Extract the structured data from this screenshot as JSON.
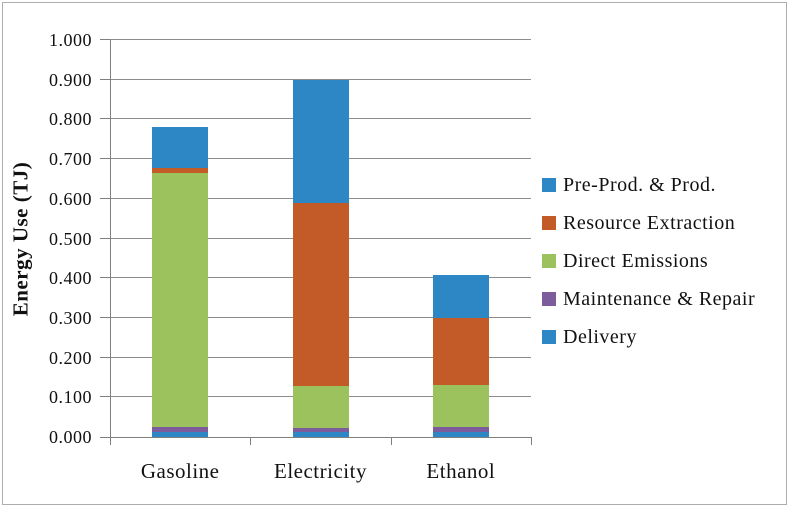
{
  "figure": {
    "background": "#ffffff",
    "border_color": "#adadad"
  },
  "axis": {
    "line_color": "#7f7f7f",
    "gridline_color": "#8c8c8c",
    "text_color": "#111111"
  },
  "chart_data": {
    "type": "bar",
    "stacked": true,
    "title": "",
    "xlabel": "",
    "ylabel": "Energy Use (TJ)",
    "categories": [
      "Gasoline",
      "Electricity",
      "Ethanol"
    ],
    "series": [
      {
        "name": "Delivery",
        "color": "#2e87c5",
        "values": [
          0.013,
          0.012,
          0.013
        ]
      },
      {
        "name": "Maintenance & Repair",
        "color": "#7d5c9b",
        "values": [
          0.012,
          0.01,
          0.012
        ]
      },
      {
        "name": "Direct Emissions",
        "color": "#9cc25e",
        "values": [
          0.64,
          0.106,
          0.105
        ]
      },
      {
        "name": "Resource Extraction",
        "color": "#c35b28",
        "values": [
          0.012,
          0.462,
          0.17
        ]
      },
      {
        "name": "Pre-Prod. & Prod.",
        "color": "#2e87c5",
        "values": [
          0.105,
          0.31,
          0.108
        ]
      }
    ],
    "totals": [
      0.782,
      0.9,
      0.408
    ],
    "ylim": [
      0.0,
      1.0
    ],
    "ytick_step": 0.1,
    "ytick_decimals": 3,
    "grid": true,
    "legend_position": "right",
    "legend_order_top_to_bottom": [
      "Pre-Prod. & Prod.",
      "Resource Extraction",
      "Direct Emissions",
      "Maintenance & Repair",
      "Delivery"
    ]
  }
}
